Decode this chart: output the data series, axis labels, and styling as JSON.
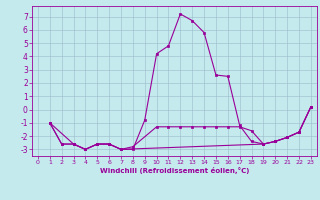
{
  "xlabel": "Windchill (Refroidissement éolien,°C)",
  "xlim": [
    -0.5,
    23.5
  ],
  "ylim": [
    -3.5,
    7.8
  ],
  "xticks": [
    0,
    1,
    2,
    3,
    4,
    5,
    6,
    7,
    8,
    9,
    10,
    11,
    12,
    13,
    14,
    15,
    16,
    17,
    18,
    19,
    20,
    21,
    22,
    23
  ],
  "yticks": [
    -3,
    -2,
    -1,
    0,
    1,
    2,
    3,
    4,
    5,
    6,
    7
  ],
  "bg_color": "#c5eaed",
  "line_color": "#990099",
  "grid_color": "#99bbcc",
  "lines": [
    {
      "x": [
        1,
        2,
        3,
        4,
        5,
        6,
        7,
        8,
        9,
        10,
        11,
        12,
        13,
        14,
        15,
        16,
        17,
        18,
        19,
        20,
        21,
        22,
        23
      ],
      "y": [
        -1,
        -2.6,
        -2.6,
        -3,
        -2.6,
        -2.6,
        -3,
        -3,
        -0.8,
        4.2,
        4.8,
        7.2,
        6.7,
        5.8,
        2.6,
        2.5,
        -1.2,
        -2.4,
        -2.6,
        -2.4,
        -2.1,
        -1.7,
        0.2
      ]
    },
    {
      "x": [
        1,
        2,
        3,
        4,
        5,
        6,
        7,
        8,
        10,
        11,
        12,
        13,
        14,
        15,
        16,
        17,
        18,
        19,
        20,
        21,
        22,
        23
      ],
      "y": [
        -1,
        -2.6,
        -2.6,
        -3,
        -2.6,
        -2.6,
        -3,
        -2.8,
        -1.3,
        -1.3,
        -1.3,
        -1.3,
        -1.3,
        -1.3,
        -1.3,
        -1.3,
        -1.6,
        -2.6,
        -2.4,
        -2.1,
        -1.7,
        0.2
      ]
    },
    {
      "x": [
        1,
        3,
        4,
        5,
        6,
        7,
        19,
        20,
        21,
        22,
        23
      ],
      "y": [
        -1,
        -2.6,
        -3,
        -2.6,
        -2.6,
        -3,
        -2.6,
        -2.4,
        -2.1,
        -1.7,
        0.2
      ]
    }
  ]
}
